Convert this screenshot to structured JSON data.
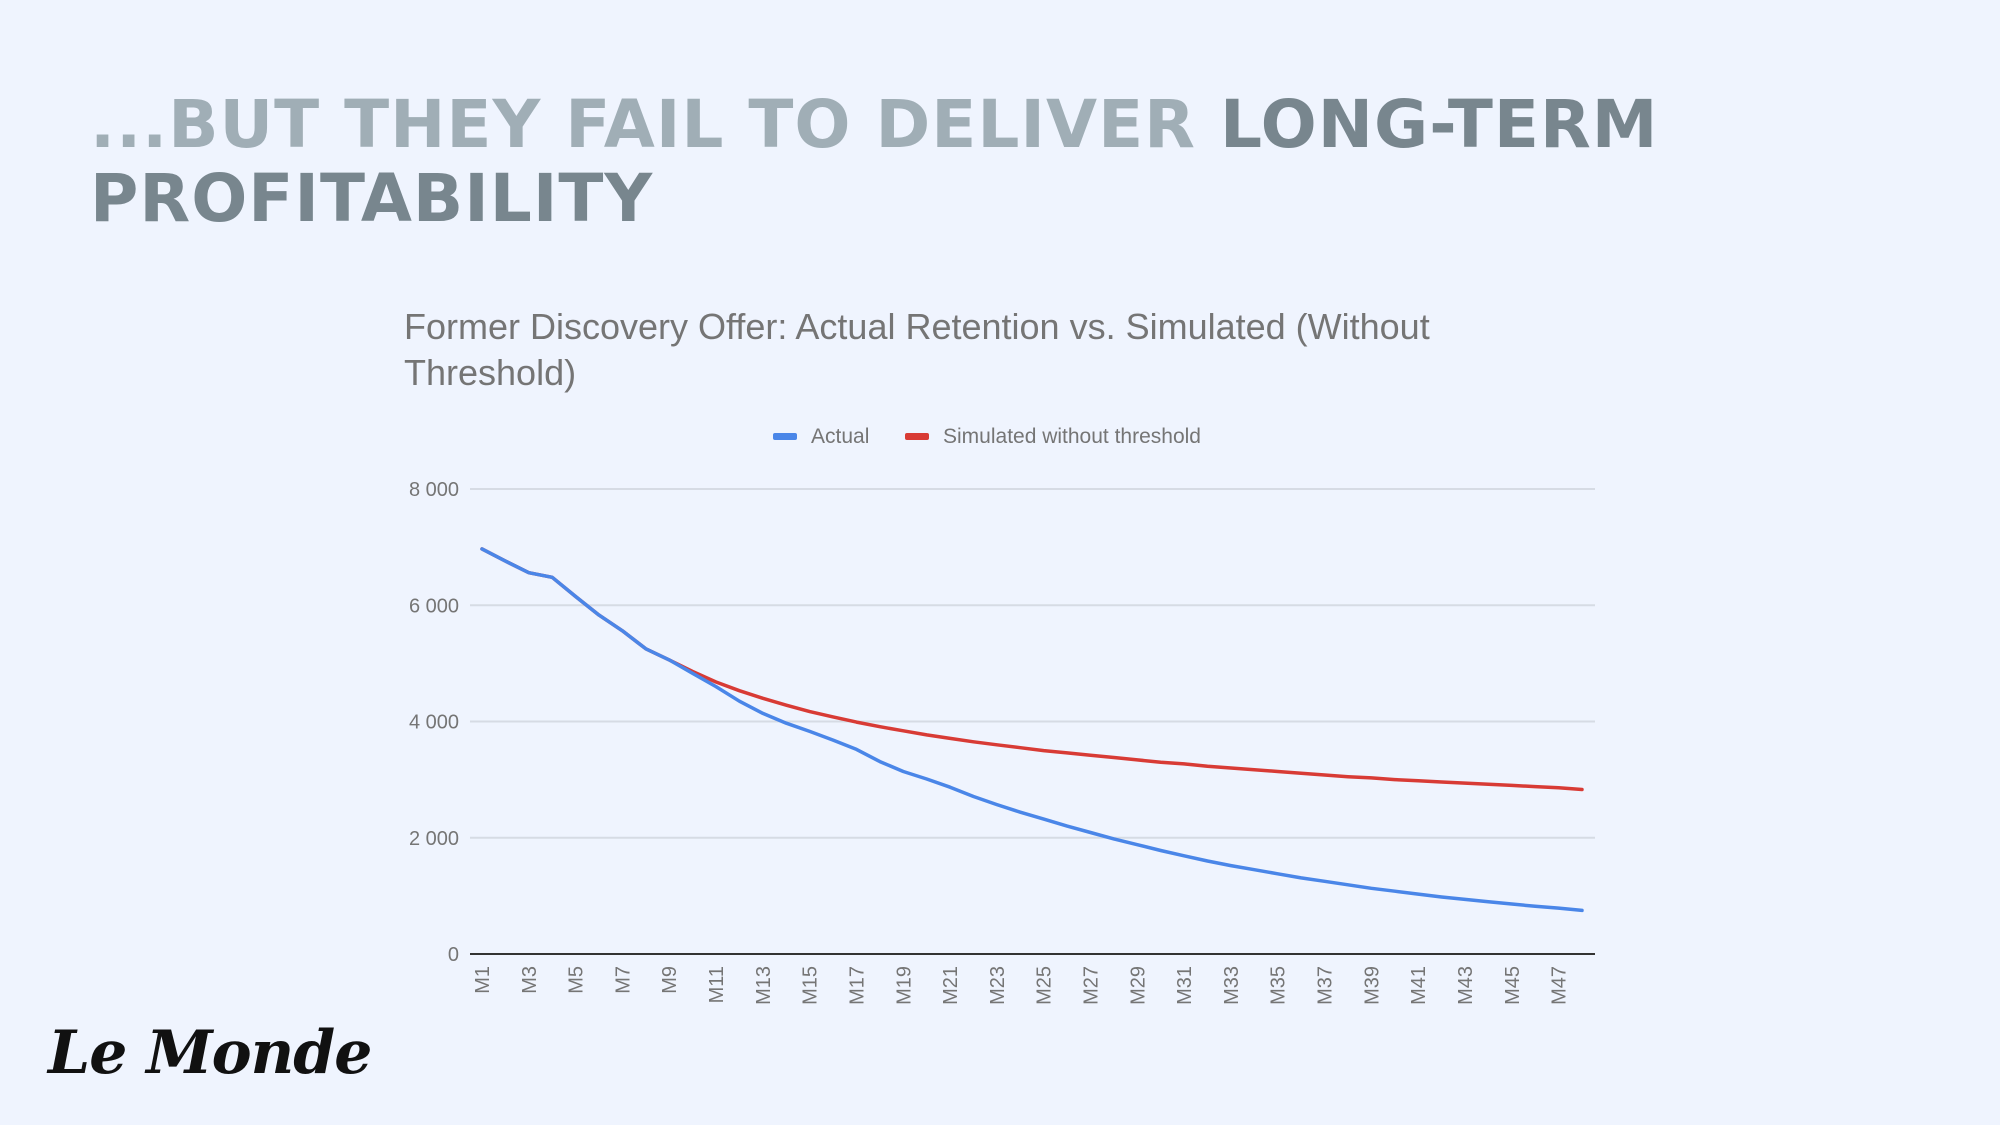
{
  "slide": {
    "title_light": "...But they fail to deliver ",
    "title_dark": "long-term profitability"
  },
  "logo": "Le Monde",
  "colors": {
    "background": "#eff4fe",
    "actual": "#4a86e8",
    "simulated": "#d83b35",
    "grid": "#d6dbe4",
    "axis_text": "#757575"
  },
  "chart_data": {
    "type": "line",
    "title": "Former Discovery Offer: Actual Retention vs. Simulated (Without Threshold)",
    "legend_position": "top",
    "grid": true,
    "ylim": [
      0,
      8000
    ],
    "yticks": [
      0,
      2000,
      4000,
      6000,
      8000
    ],
    "ytick_labels": [
      "0",
      "2 000",
      "4 000",
      "6 000",
      "8 000"
    ],
    "x": [
      "M1",
      "M2",
      "M3",
      "M4",
      "M5",
      "M6",
      "M7",
      "M8",
      "M9",
      "M10",
      "M11",
      "M12",
      "M13",
      "M14",
      "M15",
      "M16",
      "M17",
      "M18",
      "M19",
      "M20",
      "M21",
      "M22",
      "M23",
      "M24",
      "M25",
      "M26",
      "M27",
      "M28",
      "M29",
      "M30",
      "M31",
      "M32",
      "M33",
      "M34",
      "M35",
      "M36",
      "M37",
      "M38",
      "M39",
      "M40",
      "M41",
      "M42",
      "M43",
      "M44",
      "M45",
      "M46",
      "M47",
      "M48"
    ],
    "xtick_labels": [
      "M1",
      "M3",
      "M5",
      "M7",
      "M9",
      "M11",
      "M13",
      "M15",
      "M17",
      "M19",
      "M21",
      "M23",
      "M25",
      "M27",
      "M29",
      "M31",
      "M33",
      "M35",
      "M37",
      "M39",
      "M41",
      "M43",
      "M45",
      "M47"
    ],
    "series": [
      {
        "name": "Actual",
        "values": [
          6970,
          6760,
          6560,
          6480,
          6150,
          5830,
          5560,
          5250,
          5060,
          4830,
          4600,
          4350,
          4140,
          3970,
          3830,
          3680,
          3520,
          3310,
          3140,
          3010,
          2870,
          2710,
          2570,
          2440,
          2320,
          2200,
          2090,
          1980,
          1880,
          1780,
          1690,
          1600,
          1520,
          1450,
          1380,
          1310,
          1250,
          1190,
          1130,
          1080,
          1030,
          980,
          940,
          900,
          860,
          820,
          790,
          750
        ]
      },
      {
        "name": "Simulated without threshold",
        "values": [
          6970,
          6760,
          6560,
          6480,
          6150,
          5830,
          5560,
          5250,
          5060,
          4860,
          4680,
          4530,
          4400,
          4280,
          4170,
          4080,
          3990,
          3910,
          3840,
          3770,
          3710,
          3650,
          3600,
          3550,
          3500,
          3460,
          3420,
          3380,
          3340,
          3300,
          3270,
          3230,
          3200,
          3170,
          3140,
          3110,
          3080,
          3050,
          3030,
          3000,
          2980,
          2960,
          2940,
          2920,
          2900,
          2880,
          2860,
          2830
        ]
      }
    ]
  }
}
